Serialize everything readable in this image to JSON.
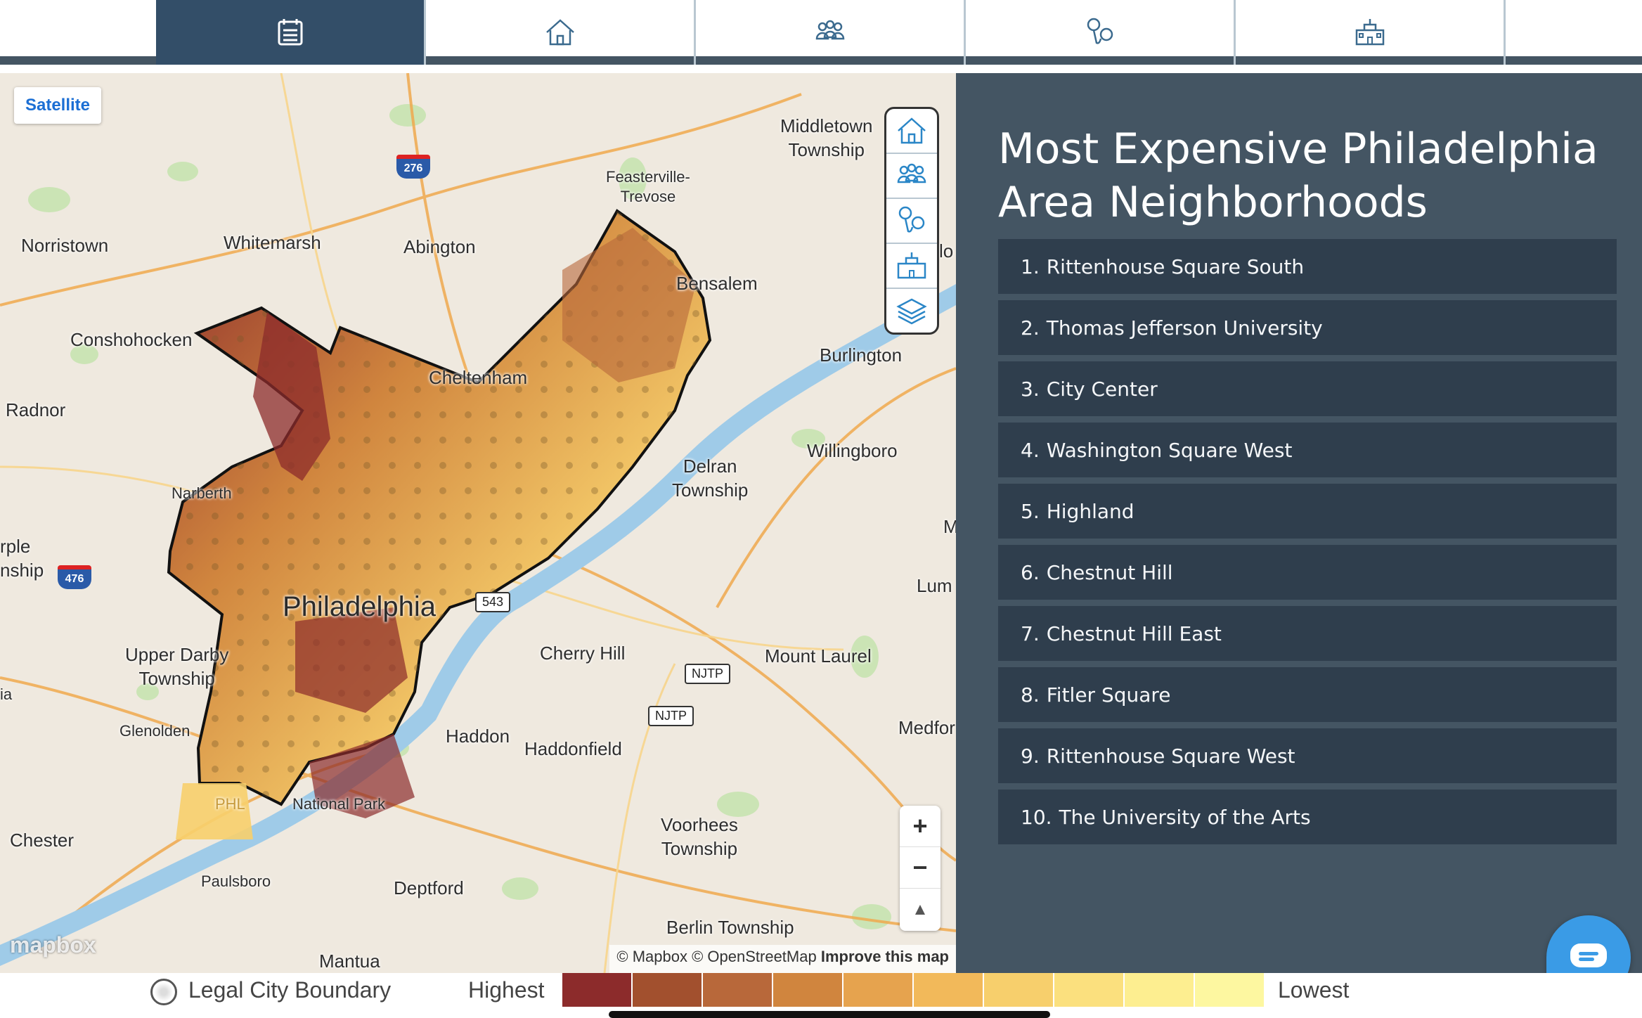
{
  "top_tabs": [
    {
      "icon": "calendar-list-icon",
      "active": true
    },
    {
      "icon": "home-icon",
      "active": false
    },
    {
      "icon": "people-group-icon",
      "active": false
    },
    {
      "icon": "map-pins-icon",
      "active": false
    },
    {
      "icon": "school-building-icon",
      "active": false
    }
  ],
  "map": {
    "satellite_label": "Satellite",
    "labels": {
      "middletown": "Middletown\nTownship",
      "feasterville": "Feasterville-\nTrevose",
      "norristown": "Norristown",
      "whitemarsh": "Whitemarsh",
      "abington": "Abington",
      "bensalem": "Bensalem",
      "conshohocken": "Conshohocken",
      "cheltenham": "Cheltenham",
      "burlington": "Burlington",
      "radnor": "Radnor",
      "willingboro": "Willingboro",
      "delran": "Delran\nTownship",
      "narberth": "Narberth",
      "rple": "rple\nnship",
      "philadelphia": "Philadelphia",
      "lum": "Lum",
      "m_edge": "M",
      "lo_edge": "lo",
      "cherry_hill": "Cherry Hill",
      "mount_laurel": "Mount Laurel",
      "upper_darby": "Upper Darby\nTownship",
      "ia_edge": "ia",
      "glenolden": "Glenolden",
      "haddon": "Haddon",
      "haddonfield": "Haddonfield",
      "medfor": "Medfor",
      "phl": "PHL",
      "national_park": "National Park",
      "voorhees": "Voorhees\nTownship",
      "chester": "Chester",
      "paulsboro": "Paulsboro",
      "deptford": "Deptford",
      "berlin": "Berlin Township",
      "mantua": "Mantua"
    },
    "shields": {
      "i276": "276",
      "i476": "476"
    },
    "route_boxes": {
      "r543": "543",
      "njtp1": "NJTP",
      "njtp2": "NJTP"
    },
    "layer_controls": [
      "home-icon",
      "people-group-icon",
      "map-pins-icon",
      "school-building-icon",
      "layers-icon"
    ],
    "zoom": {
      "in": "+",
      "out": "−",
      "compass": "▲"
    },
    "mapbox_logo": "mapbox",
    "attribution": {
      "text": "© Mapbox © OpenStreetMap",
      "improve": "Improve this map"
    }
  },
  "sidebar": {
    "title": "Most Expensive Philadelphia Area Neighborhoods",
    "items": [
      {
        "num": "1.",
        "name": "Rittenhouse Square South"
      },
      {
        "num": "2.",
        "name": "Thomas Jefferson University"
      },
      {
        "num": "3.",
        "name": "City Center"
      },
      {
        "num": "4.",
        "name": "Washington Square West"
      },
      {
        "num": "5.",
        "name": "Highland"
      },
      {
        "num": "6.",
        "name": "Chestnut Hill"
      },
      {
        "num": "7.",
        "name": "Chestnut Hill East"
      },
      {
        "num": "8.",
        "name": "Fitler Square"
      },
      {
        "num": "9.",
        "name": "Rittenhouse Square West"
      },
      {
        "num": "10.",
        "name": "The University of the Arts"
      }
    ]
  },
  "legend": {
    "boundary_label": "Legal City Boundary",
    "highest_label": "Highest",
    "lowest_label": "Lowest",
    "colors": [
      "#8c2b2b",
      "#a2502e",
      "#b8683a",
      "#d0853e",
      "#e6a34e",
      "#f2b95a",
      "#f7cf6c",
      "#fbe07e",
      "#fdee90",
      "#fdf7a0"
    ]
  },
  "colors": {
    "tab_active": "#334e68",
    "sidebar_bg": "#445563",
    "list_item_bg": "#2f3e4d",
    "chat": "#3a9be6"
  }
}
